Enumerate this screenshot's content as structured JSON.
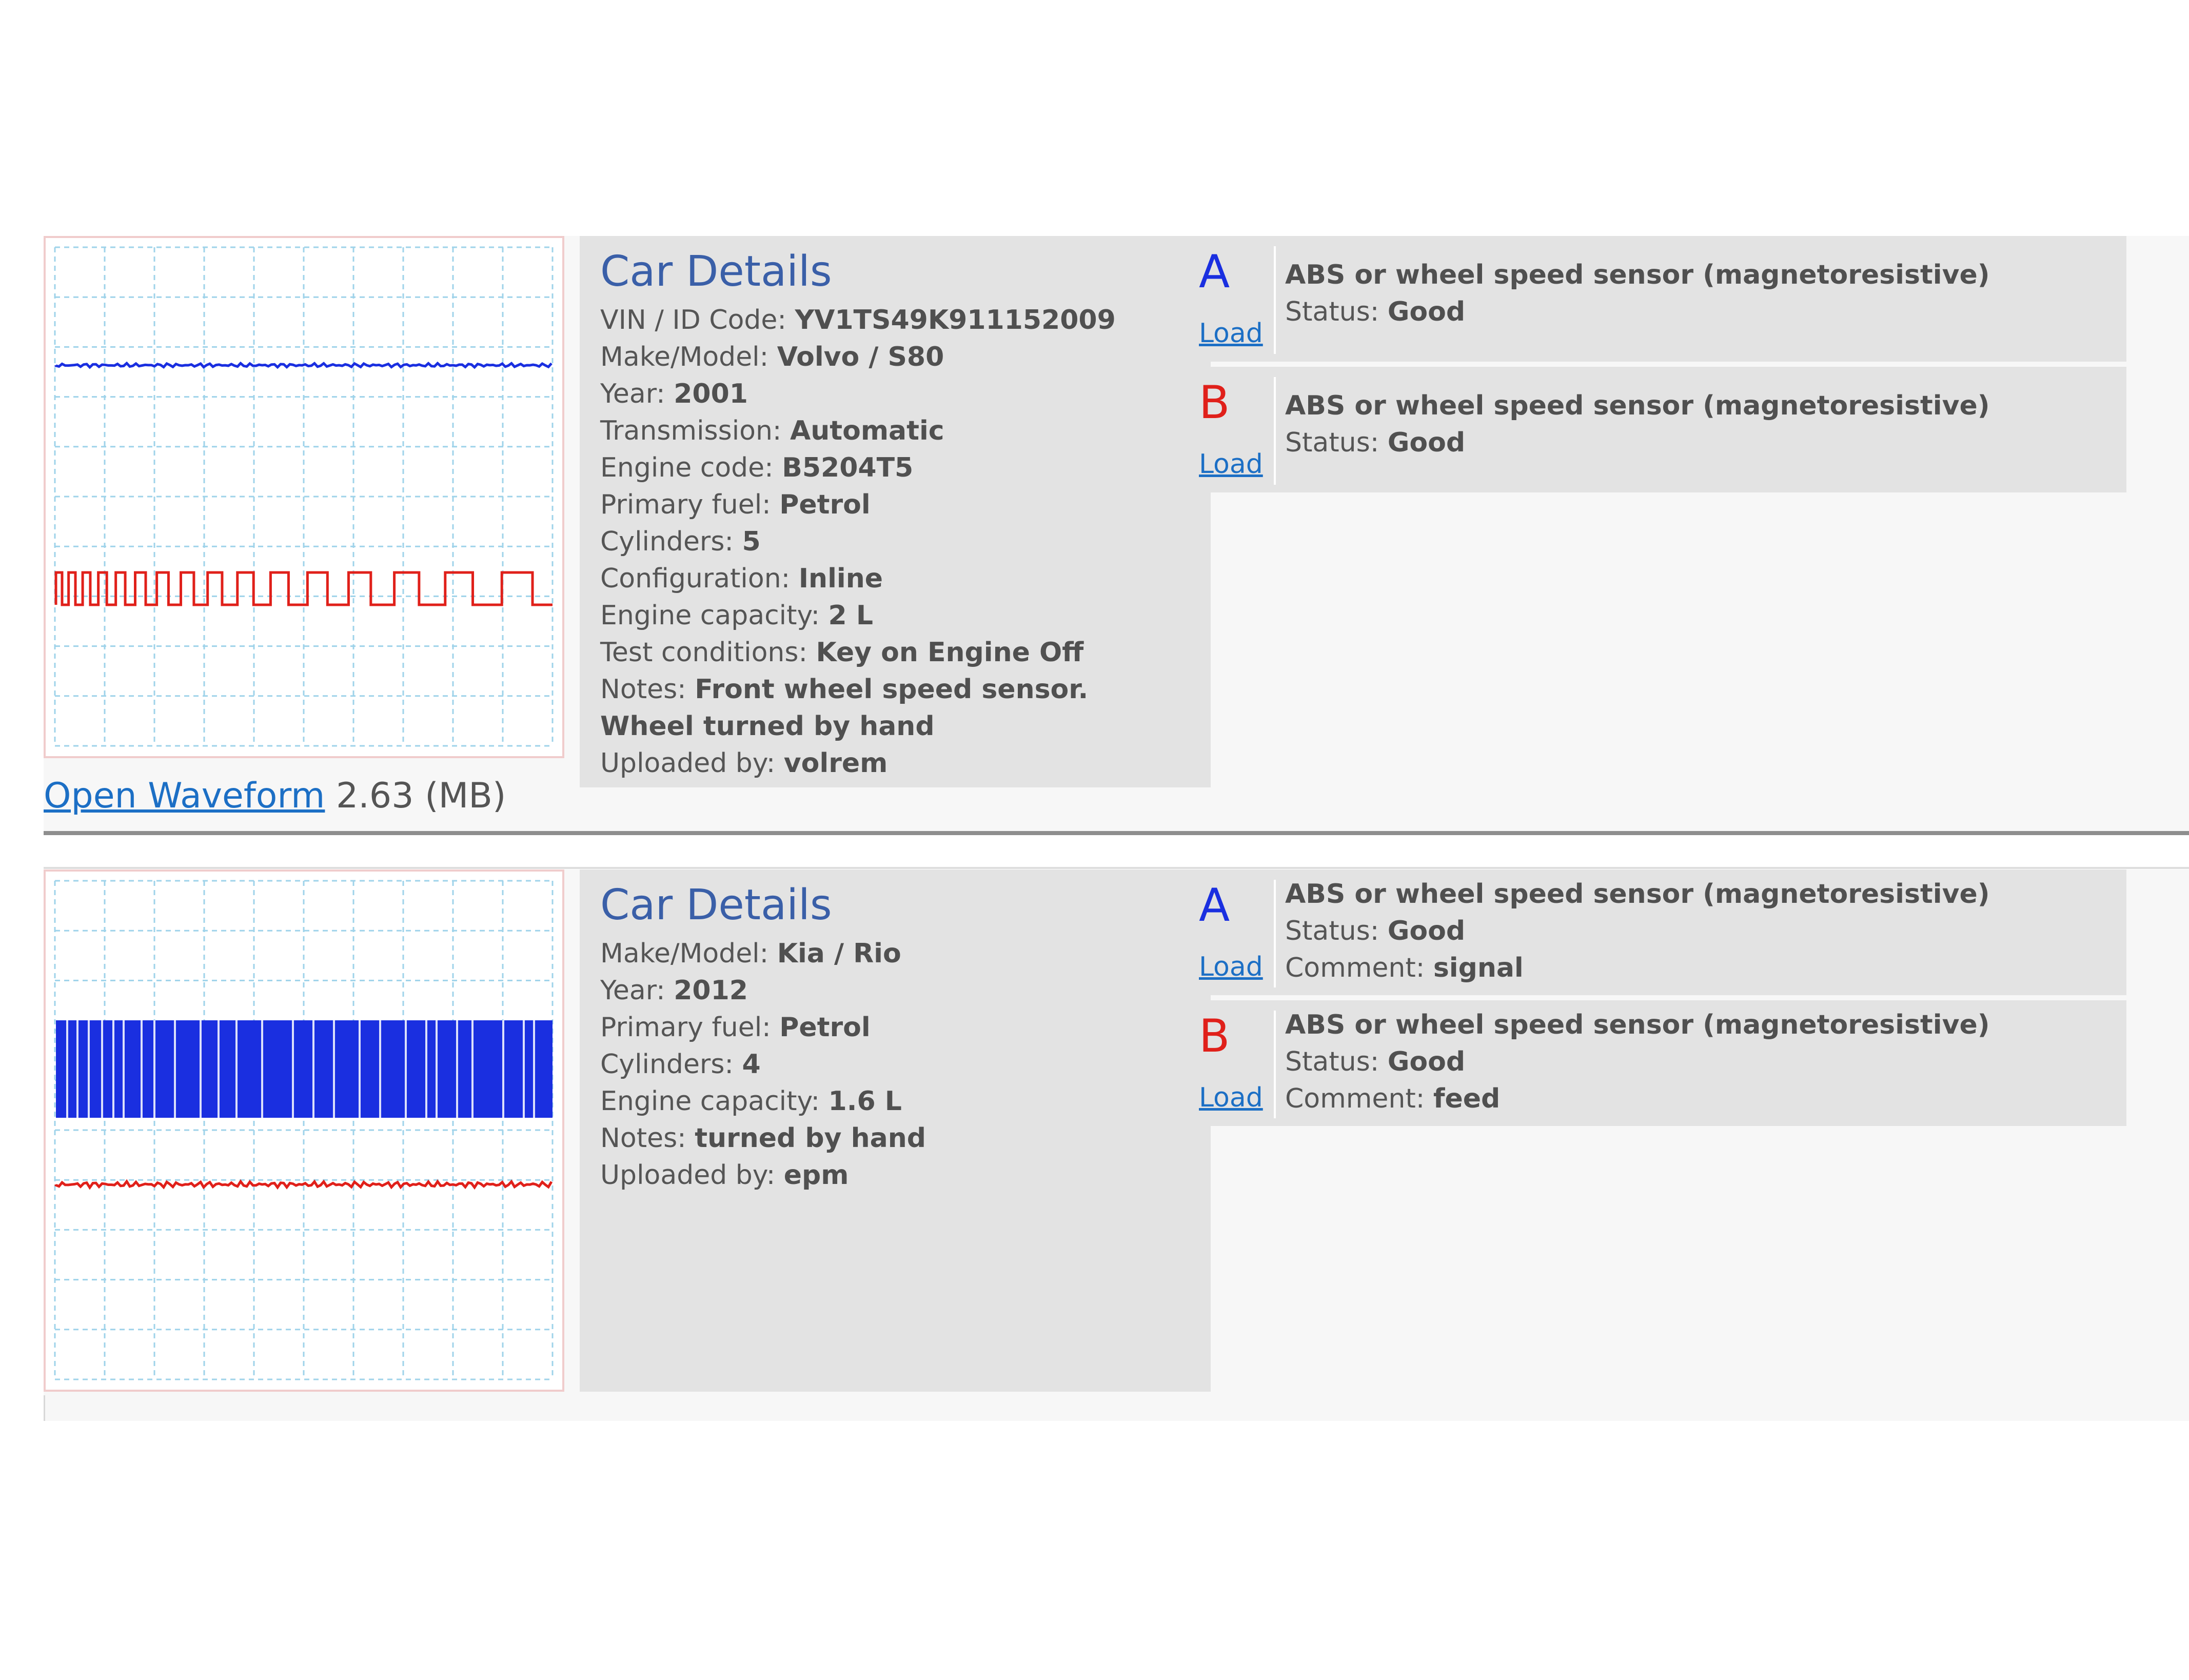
{
  "entries": [
    {
      "thumbnail": {
        "trace_colors": {
          "channel_a": "#1a2fe0",
          "channel_b": "#e0201a"
        },
        "grid_color": "#9fd3ea"
      },
      "open_waveform": {
        "label": "Open Waveform",
        "size": "2.63 (MB)"
      },
      "details": {
        "title": "Car Details",
        "rows": [
          {
            "label": "VIN / ID Code:",
            "value": "YV1TS49K911152009"
          },
          {
            "label": "Make/Model:",
            "value": "Volvo / S80"
          },
          {
            "label": "Year:",
            "value": "2001"
          },
          {
            "label": "Transmission:",
            "value": "Automatic"
          },
          {
            "label": "Engine code:",
            "value": "B5204T5"
          },
          {
            "label": "Primary fuel:",
            "value": "Petrol"
          },
          {
            "label": "Cylinders:",
            "value": "5"
          },
          {
            "label": "Configuration:",
            "value": "Inline"
          },
          {
            "label": "Engine capacity:",
            "value": "2 L"
          },
          {
            "label": "Test conditions:",
            "value": "Key on Engine Off"
          },
          {
            "label": "Notes:",
            "value": "Front wheel speed sensor. Wheel turned by hand"
          },
          {
            "label": "Uploaded by:",
            "value": "volrem"
          }
        ]
      },
      "tests": [
        {
          "letter": "A",
          "load_label": "Load",
          "sensor": "ABS or wheel speed sensor (magnetoresistive)",
          "status_label": "Status:",
          "status": "Good"
        },
        {
          "letter": "B",
          "load_label": "Load",
          "sensor": "ABS or wheel speed sensor (magnetoresistive)",
          "status_label": "Status:",
          "status": "Good"
        }
      ]
    },
    {
      "thumbnail": {
        "trace_colors": {
          "channel_a": "#1a2fe0",
          "channel_b": "#e0201a"
        },
        "grid_color": "#9fd3ea"
      },
      "details": {
        "title": "Car Details",
        "rows": [
          {
            "label": "Make/Model:",
            "value": "Kia / Rio"
          },
          {
            "label": "Year:",
            "value": "2012"
          },
          {
            "label": "Primary fuel:",
            "value": "Petrol"
          },
          {
            "label": "Cylinders:",
            "value": "4"
          },
          {
            "label": "Engine capacity:",
            "value": "1.6 L"
          },
          {
            "label": "Notes:",
            "value": "turned by hand"
          },
          {
            "label": "Uploaded by:",
            "value": "epm"
          }
        ]
      },
      "tests": [
        {
          "letter": "A",
          "load_label": "Load",
          "sensor": "ABS or wheel speed sensor (magnetoresistive)",
          "status_label": "Status:",
          "status": "Good",
          "comment_label": "Comment:",
          "comment": "signal"
        },
        {
          "letter": "B",
          "load_label": "Load",
          "sensor": "ABS or wheel speed sensor (magnetoresistive)",
          "status_label": "Status:",
          "status": "Good",
          "comment_label": "Comment:",
          "comment": "feed"
        }
      ]
    }
  ]
}
